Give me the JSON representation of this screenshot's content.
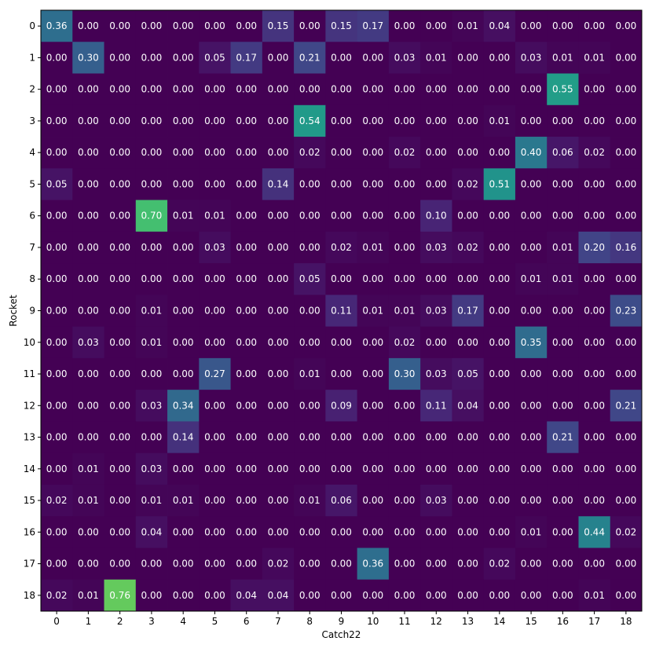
{
  "chart_data": {
    "type": "heatmap",
    "xlabel": "Catch22",
    "ylabel": "Rocket",
    "x_categories": [
      "0",
      "1",
      "2",
      "3",
      "4",
      "5",
      "6",
      "7",
      "8",
      "9",
      "10",
      "11",
      "12",
      "13",
      "14",
      "15",
      "16",
      "17",
      "18"
    ],
    "y_categories": [
      "0",
      "1",
      "2",
      "3",
      "4",
      "5",
      "6",
      "7",
      "8",
      "9",
      "10",
      "11",
      "12",
      "13",
      "14",
      "15",
      "16",
      "17",
      "18"
    ],
    "colormap": "viridis",
    "value_range": [
      0,
      1
    ],
    "values": [
      [
        0.36,
        0.0,
        0.0,
        0.0,
        0.0,
        0.0,
        0.0,
        0.15,
        0.0,
        0.15,
        0.17,
        0.0,
        0.0,
        0.01,
        0.04,
        0.0,
        0.0,
        0.0,
        0.0
      ],
      [
        0.0,
        0.3,
        0.0,
        0.0,
        0.0,
        0.05,
        0.17,
        0.0,
        0.21,
        0.0,
        0.0,
        0.03,
        0.01,
        0.0,
        0.0,
        0.03,
        0.01,
        0.01,
        0.0
      ],
      [
        0.0,
        0.0,
        0.0,
        0.0,
        0.0,
        0.0,
        0.0,
        0.0,
        0.0,
        0.0,
        0.0,
        0.0,
        0.0,
        0.0,
        0.0,
        0.0,
        0.55,
        0.0,
        0.0
      ],
      [
        0.0,
        0.0,
        0.0,
        0.0,
        0.0,
        0.0,
        0.0,
        0.0,
        0.54,
        0.0,
        0.0,
        0.0,
        0.0,
        0.0,
        0.01,
        0.0,
        0.0,
        0.0,
        0.0
      ],
      [
        0.0,
        0.0,
        0.0,
        0.0,
        0.0,
        0.0,
        0.0,
        0.0,
        0.02,
        0.0,
        0.0,
        0.02,
        0.0,
        0.0,
        0.0,
        0.4,
        0.06,
        0.02,
        0.0
      ],
      [
        0.05,
        0.0,
        0.0,
        0.0,
        0.0,
        0.0,
        0.0,
        0.14,
        0.0,
        0.0,
        0.0,
        0.0,
        0.0,
        0.02,
        0.51,
        0.0,
        0.0,
        0.0,
        0.0
      ],
      [
        0.0,
        0.0,
        0.0,
        0.7,
        0.01,
        0.01,
        0.0,
        0.0,
        0.0,
        0.0,
        0.0,
        0.0,
        0.1,
        0.0,
        0.0,
        0.0,
        0.0,
        0.0,
        0.0
      ],
      [
        0.0,
        0.0,
        0.0,
        0.0,
        0.0,
        0.03,
        0.0,
        0.0,
        0.0,
        0.02,
        0.01,
        0.0,
        0.03,
        0.02,
        0.0,
        0.0,
        0.01,
        0.2,
        0.16
      ],
      [
        0.0,
        0.0,
        0.0,
        0.0,
        0.0,
        0.0,
        0.0,
        0.0,
        0.05,
        0.0,
        0.0,
        0.0,
        0.0,
        0.0,
        0.0,
        0.01,
        0.01,
        0.0,
        0.0
      ],
      [
        0.0,
        0.0,
        0.0,
        0.01,
        0.0,
        0.0,
        0.0,
        0.0,
        0.0,
        0.11,
        0.01,
        0.01,
        0.03,
        0.17,
        0.0,
        0.0,
        0.0,
        0.0,
        0.23
      ],
      [
        0.0,
        0.03,
        0.0,
        0.01,
        0.0,
        0.0,
        0.0,
        0.0,
        0.0,
        0.0,
        0.0,
        0.02,
        0.0,
        0.0,
        0.0,
        0.35,
        0.0,
        0.0,
        0.0
      ],
      [
        0.0,
        0.0,
        0.0,
        0.0,
        0.0,
        0.27,
        0.0,
        0.0,
        0.01,
        0.0,
        0.0,
        0.3,
        0.03,
        0.05,
        0.0,
        0.0,
        0.0,
        0.0,
        0.0
      ],
      [
        0.0,
        0.0,
        0.0,
        0.03,
        0.34,
        0.0,
        0.0,
        0.0,
        0.0,
        0.09,
        0.0,
        0.0,
        0.11,
        0.04,
        0.0,
        0.0,
        0.0,
        0.0,
        0.21
      ],
      [
        0.0,
        0.0,
        0.0,
        0.0,
        0.14,
        0.0,
        0.0,
        0.0,
        0.0,
        0.0,
        0.0,
        0.0,
        0.0,
        0.0,
        0.0,
        0.0,
        0.21,
        0.0,
        0.0
      ],
      [
        0.0,
        0.01,
        0.0,
        0.03,
        0.0,
        0.0,
        0.0,
        0.0,
        0.0,
        0.0,
        0.0,
        0.0,
        0.0,
        0.0,
        0.0,
        0.0,
        0.0,
        0.0,
        0.0
      ],
      [
        0.02,
        0.01,
        0.0,
        0.01,
        0.01,
        0.0,
        0.0,
        0.0,
        0.01,
        0.06,
        0.0,
        0.0,
        0.03,
        0.0,
        0.0,
        0.0,
        0.0,
        0.0,
        0.0
      ],
      [
        0.0,
        0.0,
        0.0,
        0.04,
        0.0,
        0.0,
        0.0,
        0.0,
        0.0,
        0.0,
        0.0,
        0.0,
        0.0,
        0.0,
        0.0,
        0.01,
        0.0,
        0.44,
        0.02
      ],
      [
        0.0,
        0.0,
        0.0,
        0.0,
        0.0,
        0.0,
        0.0,
        0.02,
        0.0,
        0.0,
        0.36,
        0.0,
        0.0,
        0.0,
        0.02,
        0.0,
        0.0,
        0.0,
        0.0
      ],
      [
        0.02,
        0.01,
        0.76,
        0.0,
        0.0,
        0.0,
        0.04,
        0.04,
        0.0,
        0.0,
        0.0,
        0.0,
        0.0,
        0.0,
        0.0,
        0.0,
        0.0,
        0.01,
        0.0
      ]
    ]
  }
}
